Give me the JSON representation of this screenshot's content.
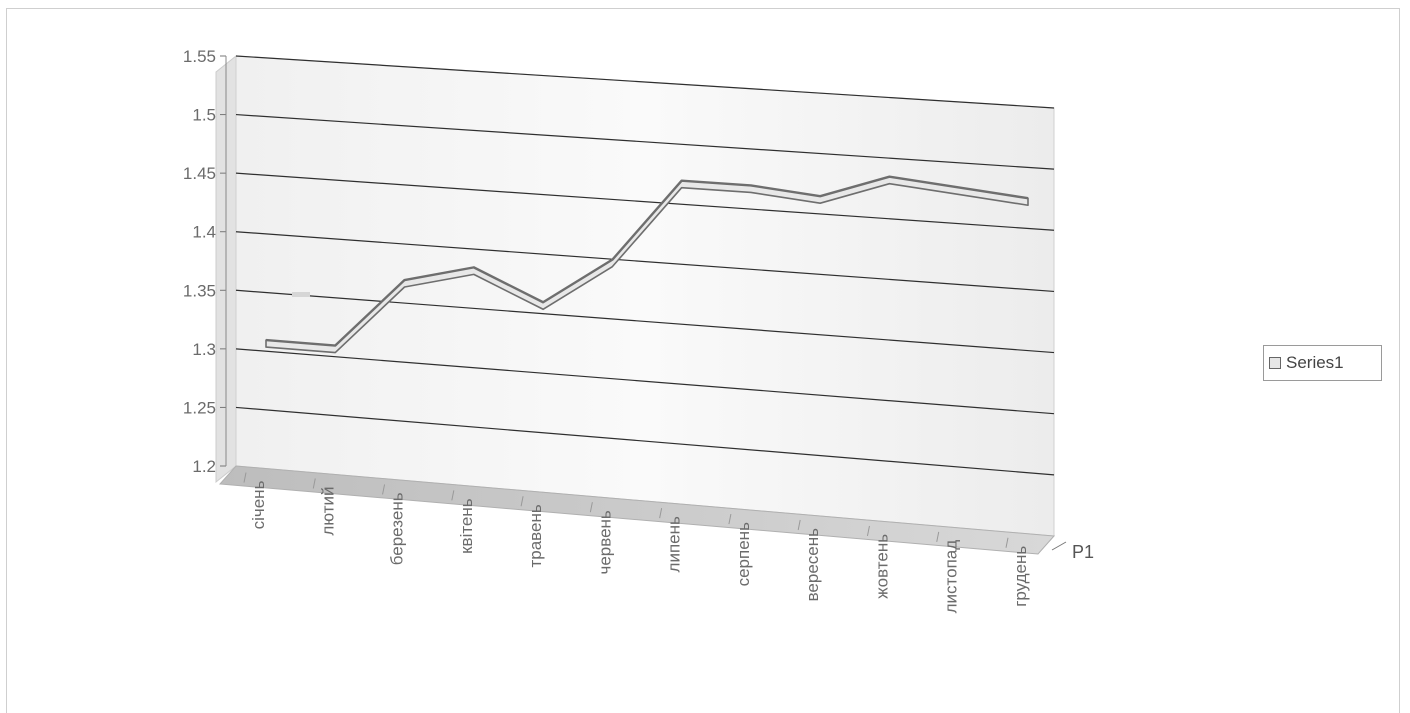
{
  "chart_data": {
    "type": "line",
    "categories": [
      "січень",
      "лютий",
      "березень",
      "квітень",
      "травень",
      "червень",
      "липень",
      "серпень",
      "вересень",
      "жовтень",
      "листопад",
      "грудень"
    ],
    "series": [
      {
        "name": "Series1",
        "values": [
          1.315,
          1.315,
          1.375,
          1.39,
          1.365,
          1.405,
          1.475,
          1.475,
          1.47,
          1.49,
          1.485,
          1.48
        ]
      }
    ],
    "ylim": [
      1.2,
      1.55
    ],
    "y_ticks": [
      "1.2",
      "1.25",
      "1.3",
      "1.35",
      "1.4",
      "1.45",
      "1.5",
      "1.55"
    ],
    "depth_label": "Р1",
    "grid": true,
    "legend_position": "right",
    "style": "3d-line",
    "colors": {
      "line_fill": "#e8e8e8",
      "line_stroke": "#6e6e6e",
      "floor": "#c4c4c4",
      "grid": "#2f2f2f"
    }
  },
  "legend": {
    "label": "Series1"
  }
}
